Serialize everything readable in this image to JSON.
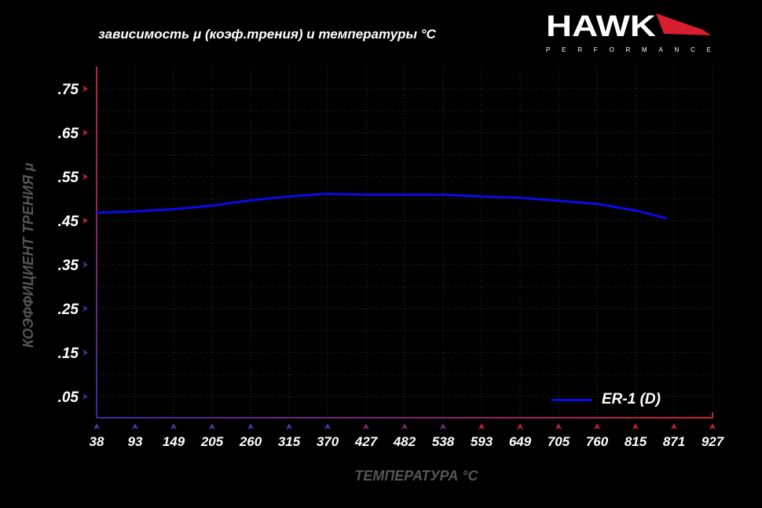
{
  "chart_data": {
    "type": "line",
    "title": "зависимость μ (коэф.трения) и температуры °C",
    "xlabel": "ТЕМПЕРАТУРА °C",
    "ylabel": "КОЭФФИЦИЕНТ ТРЕНИЯ μ",
    "x_ticks": [
      "38",
      "93",
      "149",
      "205",
      "260",
      "315",
      "370",
      "427",
      "482",
      "538",
      "593",
      "649",
      "705",
      "760",
      "815",
      "871",
      "927"
    ],
    "y_ticks": [
      ".75",
      ".65",
      ".55",
      ".45",
      ".35",
      ".25",
      ".15",
      ".05"
    ],
    "xlim": [
      38,
      927
    ],
    "ylim": [
      0,
      0.8
    ],
    "grid": true,
    "legend_position": "bottom-right",
    "series": [
      {
        "name": "ER-1 (D)",
        "color": "#0a0ae6",
        "x": [
          38,
          93,
          149,
          205,
          260,
          315,
          370,
          427,
          482,
          538,
          593,
          649,
          705,
          760,
          815,
          860
        ],
        "y": [
          0.468,
          0.471,
          0.476,
          0.484,
          0.496,
          0.505,
          0.511,
          0.509,
          0.509,
          0.509,
          0.505,
          0.502,
          0.495,
          0.488,
          0.473,
          0.455
        ]
      }
    ]
  },
  "logo": {
    "brand": "HAWK",
    "sub": "PERFORMANCE"
  },
  "colors": {
    "axis_red": "#c8203a",
    "axis_blue": "#3a2aa0",
    "line": "#0a0ae6"
  }
}
